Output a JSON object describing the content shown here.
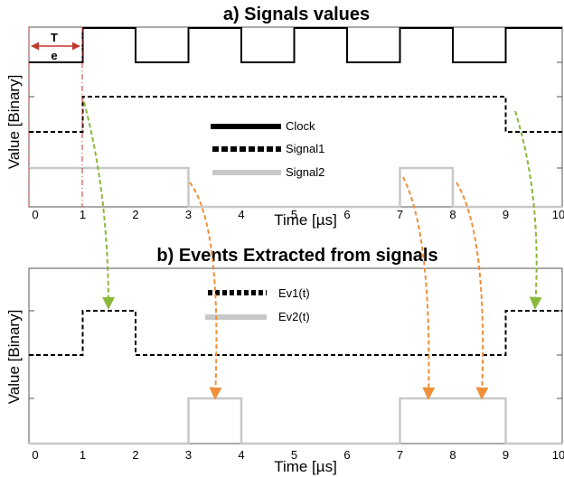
{
  "chart_data": [
    {
      "type": "line",
      "title": "a) Signals values",
      "xlabel": "Time [µs]",
      "ylabel": "Value [Binary]",
      "xlim": [
        0,
        10
      ],
      "xticks": [
        "0",
        "1",
        "2",
        "3",
        "4",
        "5",
        "6",
        "7",
        "8",
        "9",
        "10"
      ],
      "legend": "center",
      "series": [
        {
          "name": "Clock",
          "style": "solid",
          "color": "#000000",
          "points": [
            [
              -0.1,
              0
            ],
            [
              1,
              0
            ],
            [
              1,
              1
            ],
            [
              2,
              1
            ],
            [
              2,
              0
            ],
            [
              3,
              0
            ],
            [
              3,
              1
            ],
            [
              4,
              1
            ],
            [
              4,
              0
            ],
            [
              5,
              0
            ],
            [
              5,
              1
            ],
            [
              6,
              1
            ],
            [
              6,
              0
            ],
            [
              7,
              0
            ],
            [
              7,
              1
            ],
            [
              8,
              1
            ],
            [
              8,
              0
            ],
            [
              9,
              0
            ],
            [
              9,
              1
            ],
            [
              10.1,
              1
            ]
          ]
        },
        {
          "name": "Signal1",
          "style": "dashed",
          "color": "#000000",
          "points": [
            [
              -0.1,
              0
            ],
            [
              1,
              0
            ],
            [
              1,
              1
            ],
            [
              9,
              1
            ],
            [
              9,
              0
            ],
            [
              10.1,
              0
            ]
          ]
        },
        {
          "name": "Signal2",
          "style": "solid",
          "color": "#c8c8c8",
          "points": [
            [
              -0.1,
              1
            ],
            [
              3,
              1
            ],
            [
              3,
              0
            ],
            [
              7,
              0
            ],
            [
              7,
              1
            ],
            [
              8,
              1
            ],
            [
              8,
              0
            ],
            [
              10.1,
              0
            ]
          ]
        }
      ],
      "annotation": "Tₑ"
    },
    {
      "type": "line",
      "title": "b) Events Extracted from signals",
      "xlabel": "Time [µs]",
      "ylabel": "Value [Binary]",
      "xlim": [
        0,
        10
      ],
      "xticks": [
        "0",
        "1",
        "2",
        "3",
        "4",
        "5",
        "6",
        "7",
        "8",
        "9",
        "10"
      ],
      "legend": "center",
      "series": [
        {
          "name": "Ev1(t)",
          "style": "dashed",
          "color": "#000000",
          "points": [
            [
              -0.1,
              0
            ],
            [
              1,
              0
            ],
            [
              1,
              1
            ],
            [
              2,
              1
            ],
            [
              2,
              0
            ],
            [
              9,
              0
            ],
            [
              9,
              1
            ],
            [
              10.1,
              1
            ]
          ]
        },
        {
          "name": "Ev2(t)",
          "style": "solid",
          "color": "#c8c8c8",
          "points": [
            [
              -0.1,
              0
            ],
            [
              3,
              0
            ],
            [
              3,
              1
            ],
            [
              4,
              1
            ],
            [
              4,
              0
            ],
            [
              7,
              0
            ],
            [
              7,
              1
            ],
            [
              9,
              1
            ],
            [
              9,
              0
            ],
            [
              10.1,
              0
            ]
          ]
        }
      ]
    }
  ],
  "annotations": {
    "te_label_top": "T",
    "te_label_bottom": "e"
  }
}
